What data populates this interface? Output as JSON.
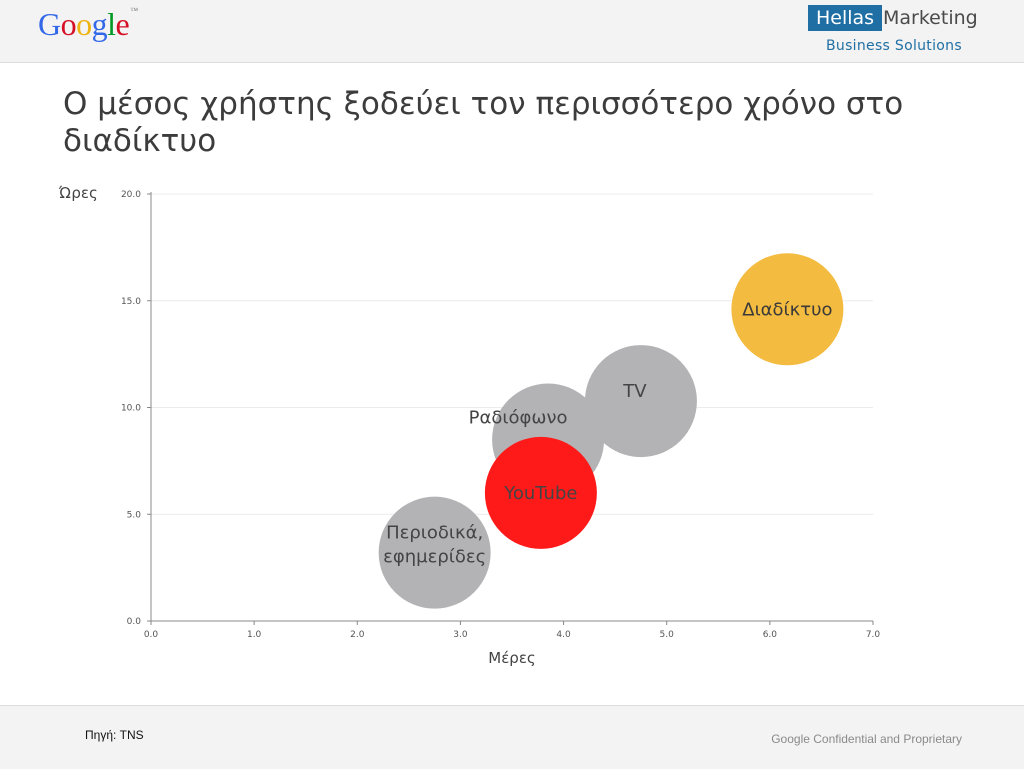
{
  "header": {
    "google_logo": {
      "letters": [
        "G",
        "o",
        "o",
        "g",
        "l",
        "e"
      ],
      "colors": [
        "#3369e8",
        "#d50f25",
        "#eeb211",
        "#3369e8",
        "#009925",
        "#d50f25"
      ],
      "tm": "™"
    },
    "partner_logo": {
      "box_text": "Hellas",
      "text": "Marketing",
      "subtitle": "Business Solutions",
      "brand_color": "#1f6fa4"
    }
  },
  "slide": {
    "title": "Ο μέσος χρήστης ξοδεύει τον περισσότερο χρόνο στο διαδίκτυο"
  },
  "chart_data": {
    "type": "bubble",
    "xlabel": "Μέρες",
    "ylabel": "Ώρες",
    "xlim": [
      0,
      7
    ],
    "ylim": [
      0,
      20
    ],
    "x_ticks": [
      "0.0",
      "1.0",
      "2.0",
      "3.0",
      "4.0",
      "5.0",
      "6.0",
      "7.0"
    ],
    "y_ticks": [
      "0.0",
      "5.0",
      "10.0",
      "15.0",
      "20.0"
    ],
    "grid": true,
    "series": [
      {
        "name": "Περιοδικά, εφημερίδες",
        "x": 2.75,
        "y": 3.2,
        "color": "#b3b3b5",
        "label_color": "#444444"
      },
      {
        "name": "Ραδιόφωνο",
        "x": 3.85,
        "y": 8.5,
        "color": "#b3b3b5",
        "label_color": "#444444"
      },
      {
        "name": "TV",
        "x": 4.75,
        "y": 10.3,
        "color": "#b3b3b5",
        "label_color": "#444444"
      },
      {
        "name": "YouTube",
        "x": 3.78,
        "y": 6.0,
        "color": "#ff1a1a",
        "label_color": "#444444"
      },
      {
        "name": "Διαδίκτυο",
        "x": 6.17,
        "y": 14.6,
        "color": "#f3bb3f",
        "label_color": "#3a3a3a"
      }
    ]
  },
  "footer": {
    "source": "Πηγή: TNS",
    "confidential": "Google Confidential and Proprietary"
  }
}
